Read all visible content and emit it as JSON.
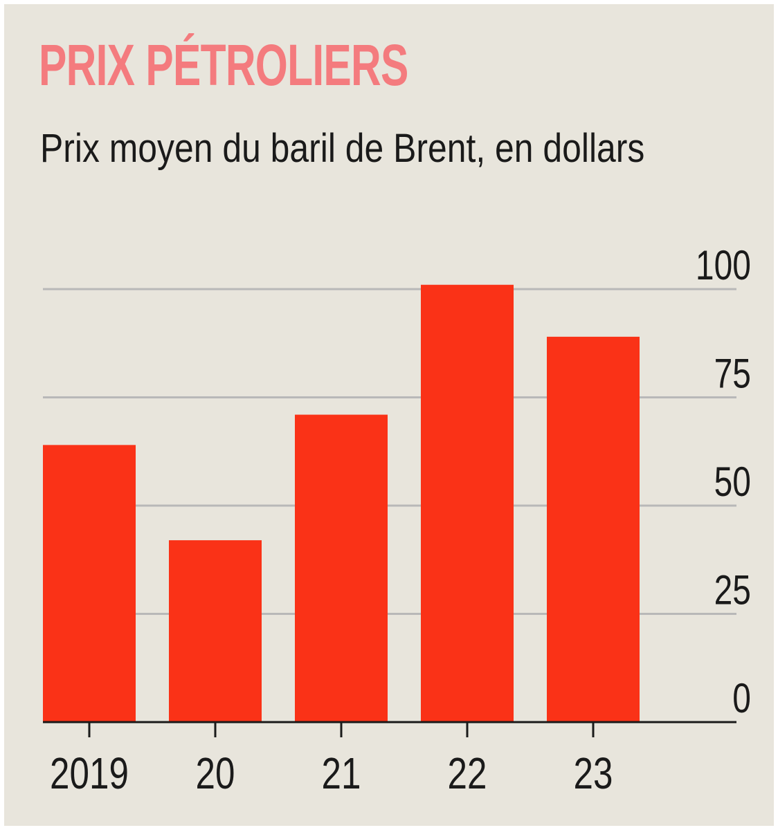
{
  "chart_data": {
    "type": "bar",
    "title": "PRIX PÉTROLIERS",
    "subtitle": "Prix moyen du baril de Brent, en dollars",
    "categories": [
      "2019",
      "20",
      "21",
      "22",
      "23"
    ],
    "values": [
      64,
      42,
      71,
      101,
      89
    ],
    "ylim": [
      0,
      100
    ],
    "yticks": [
      "0",
      "25",
      "50",
      "75",
      "100"
    ],
    "grid": true,
    "y_axis_side": "right"
  },
  "colors": {
    "title": "#f47b7e",
    "bar": "#fa3217",
    "grid": "#b8b8b8",
    "axis": "#1a1a1a",
    "background": "#e8e5dc"
  }
}
